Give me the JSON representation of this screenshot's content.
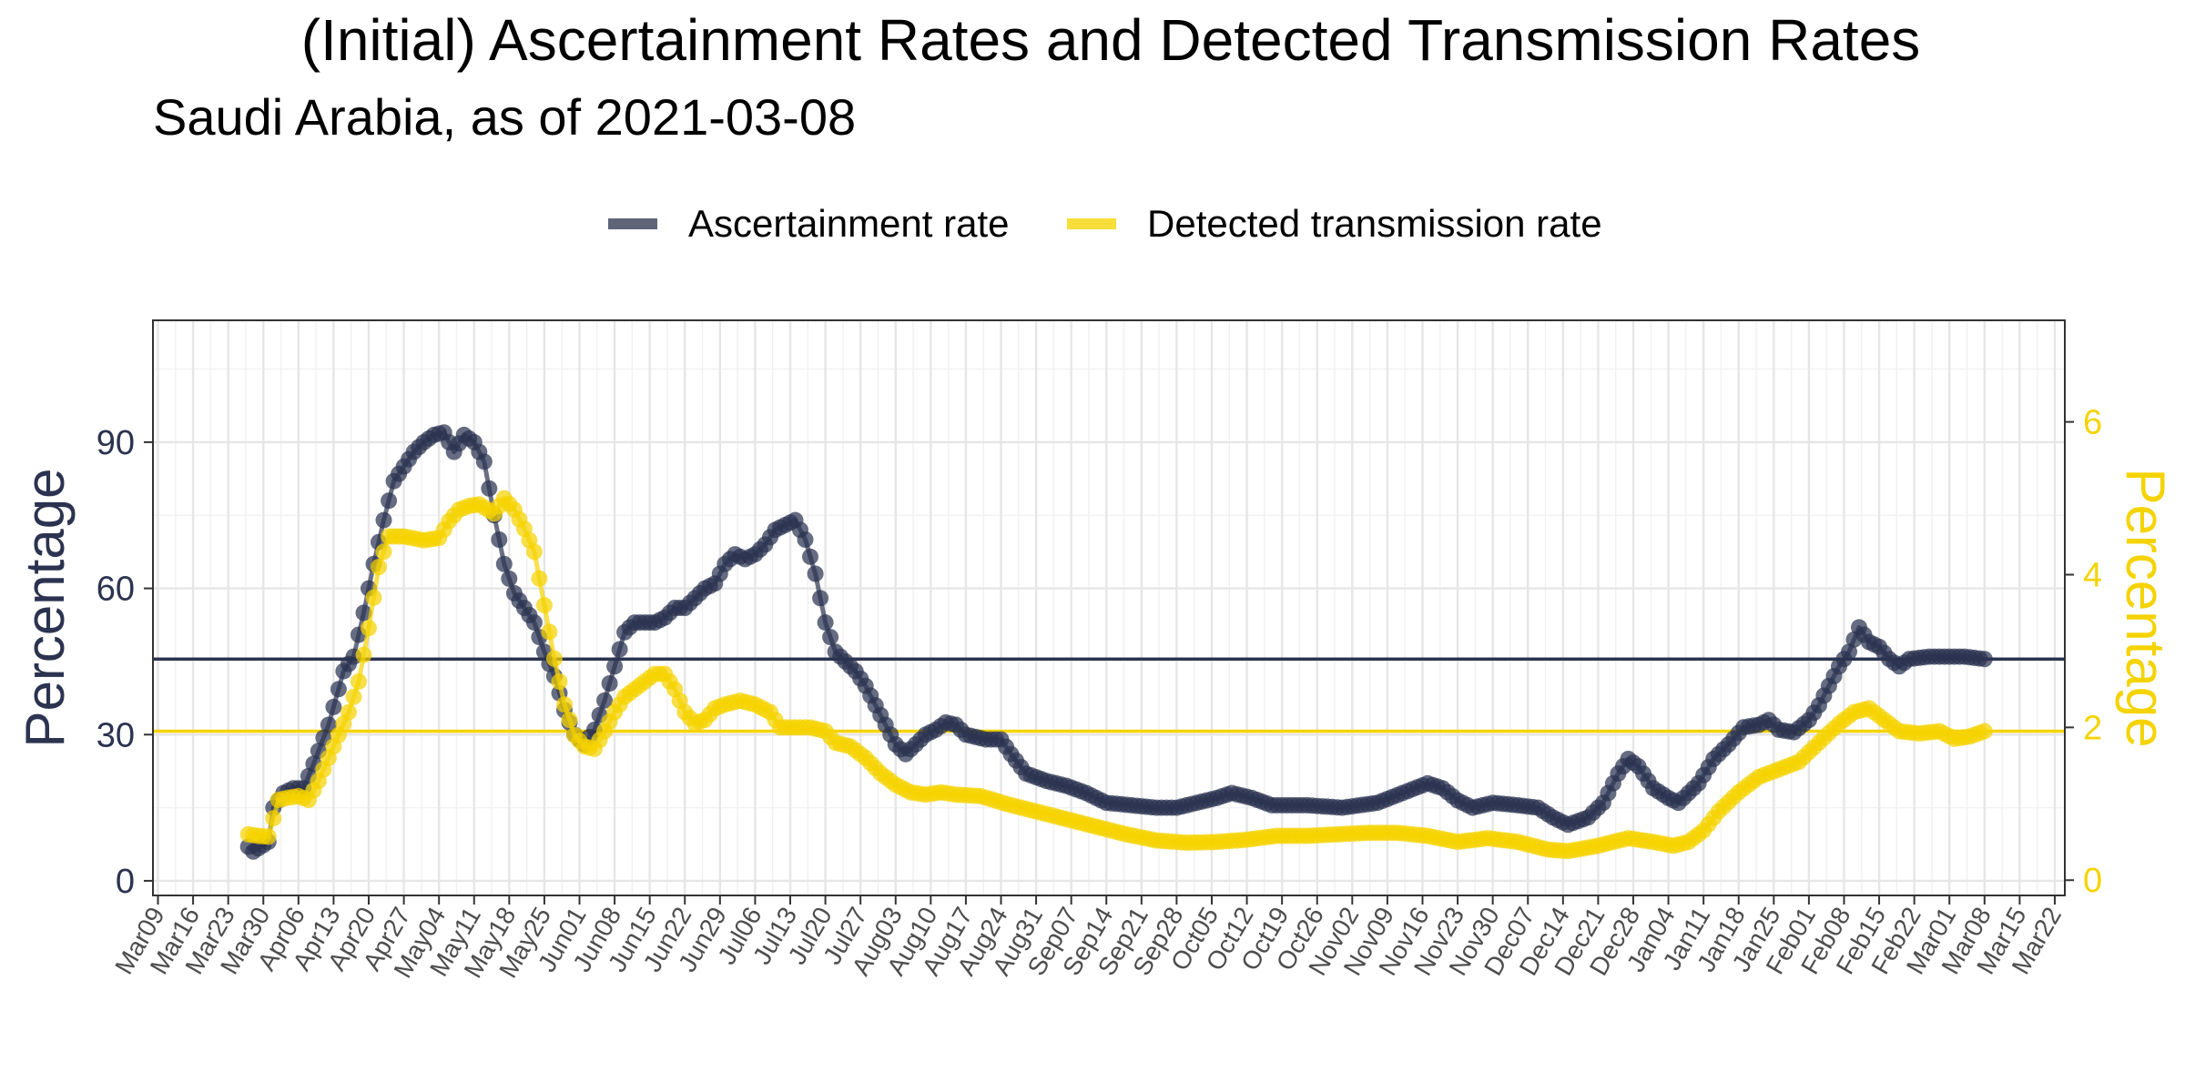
{
  "chart_data": {
    "type": "line",
    "title": "(Initial) Ascertainment Rates and Detected Transmission Rates",
    "subtitle": "Saudi Arabia, as of 2021-03-08",
    "y_left": {
      "label": "Percentage",
      "lim": [
        -3,
        115
      ],
      "ticks": [
        0,
        30,
        60,
        90
      ],
      "color": "#2b3350"
    },
    "y_right": {
      "label": "Percentage",
      "lim": [
        -0.2,
        7.33
      ],
      "ticks": [
        0,
        2,
        4,
        6
      ],
      "color": "#f5d300"
    },
    "x": {
      "lim": [
        "2020-03-08",
        "2021-03-24"
      ],
      "ticks": [
        "2020-03-09",
        "2020-03-16",
        "2020-03-23",
        "2020-03-30",
        "2020-04-06",
        "2020-04-13",
        "2020-04-20",
        "2020-04-27",
        "2020-05-04",
        "2020-05-11",
        "2020-05-18",
        "2020-05-25",
        "2020-06-01",
        "2020-06-08",
        "2020-06-15",
        "2020-06-22",
        "2020-06-29",
        "2020-07-06",
        "2020-07-13",
        "2020-07-20",
        "2020-07-27",
        "2020-08-03",
        "2020-08-10",
        "2020-08-17",
        "2020-08-24",
        "2020-08-31",
        "2020-09-07",
        "2020-09-14",
        "2020-09-21",
        "2020-09-28",
        "2020-10-05",
        "2020-10-12",
        "2020-10-19",
        "2020-10-26",
        "2020-11-02",
        "2020-11-09",
        "2020-11-16",
        "2020-11-23",
        "2020-11-30",
        "2020-12-07",
        "2020-12-14",
        "2020-12-21",
        "2020-12-28",
        "2021-01-04",
        "2021-01-11",
        "2021-01-18",
        "2021-01-25",
        "2021-02-01",
        "2021-02-08",
        "2021-02-15",
        "2021-02-22",
        "2021-03-01",
        "2021-03-08",
        "2021-03-15",
        "2021-03-22"
      ],
      "tick_labels": [
        "Mar09",
        "Mar16",
        "Mar23",
        "Mar30",
        "Apr06",
        "Apr13",
        "Apr20",
        "Apr27",
        "May04",
        "May11",
        "May18",
        "May25",
        "Jun01",
        "Jun08",
        "Jun15",
        "Jun22",
        "Jun29",
        "Jul06",
        "Jul13",
        "Jul20",
        "Jul27",
        "Aug03",
        "Aug10",
        "Aug17",
        "Aug24",
        "Aug31",
        "Sep07",
        "Sep14",
        "Sep21",
        "Sep28",
        "Oct05",
        "Oct12",
        "Oct19",
        "Oct26",
        "Nov02",
        "Nov09",
        "Nov16",
        "Nov23",
        "Nov30",
        "Dec07",
        "Dec14",
        "Dec21",
        "Dec28",
        "Jan04",
        "Jan11",
        "Jan18",
        "Jan25",
        "Feb01",
        "Feb08",
        "Feb15",
        "Feb22",
        "Mar01",
        "Mar08",
        "Mar15",
        "Mar22"
      ]
    },
    "grid": true,
    "legend": "top-center",
    "legend_entries": [
      "Ascertainment rate",
      "Detected transmission rate"
    ],
    "series": [
      {
        "name": "Ascertainment rate",
        "axis": "left",
        "color": "#2b3350",
        "hline": 45.5,
        "points": [
          [
            "2020-03-27",
            7
          ],
          [
            "2020-03-28",
            6
          ],
          [
            "2020-03-31",
            8
          ],
          [
            "2020-04-01",
            15
          ],
          [
            "2020-04-03",
            18
          ],
          [
            "2020-04-05",
            19
          ],
          [
            "2020-04-07",
            19
          ],
          [
            "2020-04-09",
            24
          ],
          [
            "2020-04-12",
            32
          ],
          [
            "2020-04-15",
            43
          ],
          [
            "2020-04-17",
            46
          ],
          [
            "2020-04-19",
            55
          ],
          [
            "2020-04-21",
            65
          ],
          [
            "2020-04-23",
            74
          ],
          [
            "2020-04-25",
            82
          ],
          [
            "2020-04-27",
            85
          ],
          [
            "2020-04-29",
            88
          ],
          [
            "2020-05-01",
            90
          ],
          [
            "2020-05-03",
            91.5
          ],
          [
            "2020-05-05",
            92
          ],
          [
            "2020-05-07",
            88
          ],
          [
            "2020-05-09",
            91.5
          ],
          [
            "2020-05-11",
            90
          ],
          [
            "2020-05-13",
            86
          ],
          [
            "2020-05-15",
            75
          ],
          [
            "2020-05-17",
            65
          ],
          [
            "2020-05-19",
            59
          ],
          [
            "2020-05-21",
            56
          ],
          [
            "2020-05-23",
            53
          ],
          [
            "2020-05-25",
            47
          ],
          [
            "2020-05-27",
            42
          ],
          [
            "2020-05-29",
            35
          ],
          [
            "2020-05-31",
            30
          ],
          [
            "2020-06-02",
            28
          ],
          [
            "2020-06-04",
            31
          ],
          [
            "2020-06-06",
            37
          ],
          [
            "2020-06-08",
            44
          ],
          [
            "2020-06-10",
            51
          ],
          [
            "2020-06-12",
            53
          ],
          [
            "2020-06-16",
            53
          ],
          [
            "2020-06-18",
            54
          ],
          [
            "2020-06-20",
            56
          ],
          [
            "2020-06-22",
            56
          ],
          [
            "2020-06-24",
            58
          ],
          [
            "2020-06-26",
            60
          ],
          [
            "2020-06-28",
            61
          ],
          [
            "2020-06-30",
            65
          ],
          [
            "2020-07-02",
            67
          ],
          [
            "2020-07-04",
            66
          ],
          [
            "2020-07-06",
            67
          ],
          [
            "2020-07-08",
            69
          ],
          [
            "2020-07-10",
            72
          ],
          [
            "2020-07-12",
            73
          ],
          [
            "2020-07-14",
            74
          ],
          [
            "2020-07-16",
            70
          ],
          [
            "2020-07-18",
            63
          ],
          [
            "2020-07-20",
            53
          ],
          [
            "2020-07-22",
            47
          ],
          [
            "2020-07-24",
            45
          ],
          [
            "2020-07-26",
            43
          ],
          [
            "2020-07-28",
            40
          ],
          [
            "2020-07-30",
            36
          ],
          [
            "2020-08-01",
            32
          ],
          [
            "2020-08-03",
            28
          ],
          [
            "2020-08-05",
            26
          ],
          [
            "2020-08-07",
            28
          ],
          [
            "2020-08-09",
            30
          ],
          [
            "2020-08-11",
            31
          ],
          [
            "2020-08-13",
            32.5
          ],
          [
            "2020-08-15",
            32
          ],
          [
            "2020-08-17",
            30
          ],
          [
            "2020-08-21",
            29
          ],
          [
            "2020-08-24",
            29
          ],
          [
            "2020-08-26",
            26
          ],
          [
            "2020-08-29",
            22
          ],
          [
            "2020-09-02",
            20.5
          ],
          [
            "2020-09-06",
            19.5
          ],
          [
            "2020-09-10",
            18
          ],
          [
            "2020-09-14",
            16
          ],
          [
            "2020-09-19",
            15.5
          ],
          [
            "2020-09-24",
            15
          ],
          [
            "2020-09-28",
            15
          ],
          [
            "2020-10-02",
            16
          ],
          [
            "2020-10-06",
            17
          ],
          [
            "2020-10-09",
            18
          ],
          [
            "2020-10-13",
            17
          ],
          [
            "2020-10-17",
            15.5
          ],
          [
            "2020-10-24",
            15.5
          ],
          [
            "2020-10-31",
            15
          ],
          [
            "2020-11-07",
            16
          ],
          [
            "2020-11-12",
            18
          ],
          [
            "2020-11-17",
            20
          ],
          [
            "2020-11-20",
            19
          ],
          [
            "2020-11-23",
            16.5
          ],
          [
            "2020-11-26",
            15
          ],
          [
            "2020-11-30",
            16
          ],
          [
            "2020-12-05",
            15.5
          ],
          [
            "2020-12-09",
            15
          ],
          [
            "2020-12-12",
            13
          ],
          [
            "2020-12-15",
            11.5
          ],
          [
            "2020-12-19",
            13
          ],
          [
            "2020-12-22",
            16
          ],
          [
            "2020-12-25",
            22
          ],
          [
            "2020-12-27",
            25
          ],
          [
            "2020-12-29",
            23.5
          ],
          [
            "2021-01-01",
            19
          ],
          [
            "2021-01-04",
            17
          ],
          [
            "2021-01-06",
            16
          ],
          [
            "2021-01-08",
            18
          ],
          [
            "2021-01-10",
            20
          ],
          [
            "2021-01-13",
            25
          ],
          [
            "2021-01-16",
            28
          ],
          [
            "2021-01-19",
            31.5
          ],
          [
            "2021-01-22",
            32
          ],
          [
            "2021-01-24",
            33
          ],
          [
            "2021-01-26",
            31
          ],
          [
            "2021-01-29",
            30.5
          ],
          [
            "2021-02-01",
            33
          ],
          [
            "2021-02-03",
            36
          ],
          [
            "2021-02-05",
            40
          ],
          [
            "2021-02-07",
            44
          ],
          [
            "2021-02-09",
            47
          ],
          [
            "2021-02-11",
            52
          ],
          [
            "2021-02-13",
            49
          ],
          [
            "2021-02-15",
            48
          ],
          [
            "2021-02-17",
            45.5
          ],
          [
            "2021-02-19",
            44
          ],
          [
            "2021-02-21",
            45.5
          ],
          [
            "2021-02-25",
            46
          ],
          [
            "2021-03-01",
            46
          ],
          [
            "2021-03-04",
            46
          ],
          [
            "2021-03-08",
            45.5
          ]
        ]
      },
      {
        "name": "Detected transmission rate",
        "axis": "right",
        "color": "#f5d300",
        "hline": 1.95,
        "points": [
          [
            "2020-03-27",
            0.6
          ],
          [
            "2020-03-29",
            0.58
          ],
          [
            "2020-03-31",
            0.57
          ],
          [
            "2020-04-02",
            1.05
          ],
          [
            "2020-04-04",
            1.08
          ],
          [
            "2020-04-06",
            1.1
          ],
          [
            "2020-04-08",
            1.05
          ],
          [
            "2020-04-10",
            1.3
          ],
          [
            "2020-04-12",
            1.6
          ],
          [
            "2020-04-14",
            1.9
          ],
          [
            "2020-04-16",
            2.2
          ],
          [
            "2020-04-18",
            2.6
          ],
          [
            "2020-04-20",
            3.3
          ],
          [
            "2020-04-22",
            4.1
          ],
          [
            "2020-04-24",
            4.5
          ],
          [
            "2020-04-27",
            4.5
          ],
          [
            "2020-05-01",
            4.45
          ],
          [
            "2020-05-04",
            4.48
          ],
          [
            "2020-05-06",
            4.7
          ],
          [
            "2020-05-08",
            4.85
          ],
          [
            "2020-05-10",
            4.9
          ],
          [
            "2020-05-12",
            4.92
          ],
          [
            "2020-05-15",
            4.8
          ],
          [
            "2020-05-17",
            5.0
          ],
          [
            "2020-05-19",
            4.85
          ],
          [
            "2020-05-21",
            4.6
          ],
          [
            "2020-05-23",
            4.3
          ],
          [
            "2020-05-25",
            3.6
          ],
          [
            "2020-05-27",
            2.9
          ],
          [
            "2020-05-29",
            2.3
          ],
          [
            "2020-05-31",
            1.9
          ],
          [
            "2020-06-02",
            1.75
          ],
          [
            "2020-06-04",
            1.72
          ],
          [
            "2020-06-06",
            1.95
          ],
          [
            "2020-06-08",
            2.2
          ],
          [
            "2020-06-10",
            2.4
          ],
          [
            "2020-06-12",
            2.5
          ],
          [
            "2020-06-14",
            2.6
          ],
          [
            "2020-06-16",
            2.7
          ],
          [
            "2020-06-18",
            2.7
          ],
          [
            "2020-06-20",
            2.5
          ],
          [
            "2020-06-22",
            2.2
          ],
          [
            "2020-06-24",
            2.05
          ],
          [
            "2020-06-26",
            2.1
          ],
          [
            "2020-06-28",
            2.25
          ],
          [
            "2020-06-30",
            2.3
          ],
          [
            "2020-07-03",
            2.35
          ],
          [
            "2020-07-06",
            2.3
          ],
          [
            "2020-07-09",
            2.2
          ],
          [
            "2020-07-11",
            2.0
          ],
          [
            "2020-07-14",
            2.0
          ],
          [
            "2020-07-17",
            2.0
          ],
          [
            "2020-07-20",
            1.95
          ],
          [
            "2020-07-22",
            1.8
          ],
          [
            "2020-07-25",
            1.75
          ],
          [
            "2020-07-28",
            1.6
          ],
          [
            "2020-07-31",
            1.4
          ],
          [
            "2020-08-03",
            1.25
          ],
          [
            "2020-08-06",
            1.15
          ],
          [
            "2020-08-09",
            1.12
          ],
          [
            "2020-08-12",
            1.15
          ],
          [
            "2020-08-15",
            1.12
          ],
          [
            "2020-08-20",
            1.1
          ],
          [
            "2020-08-25",
            1.0
          ],
          [
            "2020-08-31",
            0.9
          ],
          [
            "2020-09-06",
            0.8
          ],
          [
            "2020-09-12",
            0.7
          ],
          [
            "2020-09-18",
            0.6
          ],
          [
            "2020-09-24",
            0.52
          ],
          [
            "2020-09-30",
            0.49
          ],
          [
            "2020-10-06",
            0.5
          ],
          [
            "2020-10-12",
            0.53
          ],
          [
            "2020-10-18",
            0.58
          ],
          [
            "2020-10-24",
            0.58
          ],
          [
            "2020-10-30",
            0.6
          ],
          [
            "2020-11-05",
            0.62
          ],
          [
            "2020-11-11",
            0.62
          ],
          [
            "2020-11-17",
            0.58
          ],
          [
            "2020-11-23",
            0.5
          ],
          [
            "2020-11-29",
            0.55
          ],
          [
            "2020-12-05",
            0.5
          ],
          [
            "2020-12-11",
            0.4
          ],
          [
            "2020-12-15",
            0.38
          ],
          [
            "2020-12-21",
            0.45
          ],
          [
            "2020-12-27",
            0.55
          ],
          [
            "2021-01-01",
            0.5
          ],
          [
            "2021-01-05",
            0.45
          ],
          [
            "2021-01-08",
            0.5
          ],
          [
            "2021-01-11",
            0.65
          ],
          [
            "2021-01-14",
            0.9
          ],
          [
            "2021-01-18",
            1.15
          ],
          [
            "2021-01-22",
            1.35
          ],
          [
            "2021-01-26",
            1.45
          ],
          [
            "2021-01-30",
            1.55
          ],
          [
            "2021-02-03",
            1.8
          ],
          [
            "2021-02-07",
            2.05
          ],
          [
            "2021-02-10",
            2.2
          ],
          [
            "2021-02-13",
            2.25
          ],
          [
            "2021-02-16",
            2.1
          ],
          [
            "2021-02-19",
            1.95
          ],
          [
            "2021-02-23",
            1.92
          ],
          [
            "2021-02-27",
            1.95
          ],
          [
            "2021-03-02",
            1.85
          ],
          [
            "2021-03-05",
            1.88
          ],
          [
            "2021-03-08",
            1.95
          ]
        ]
      }
    ]
  }
}
